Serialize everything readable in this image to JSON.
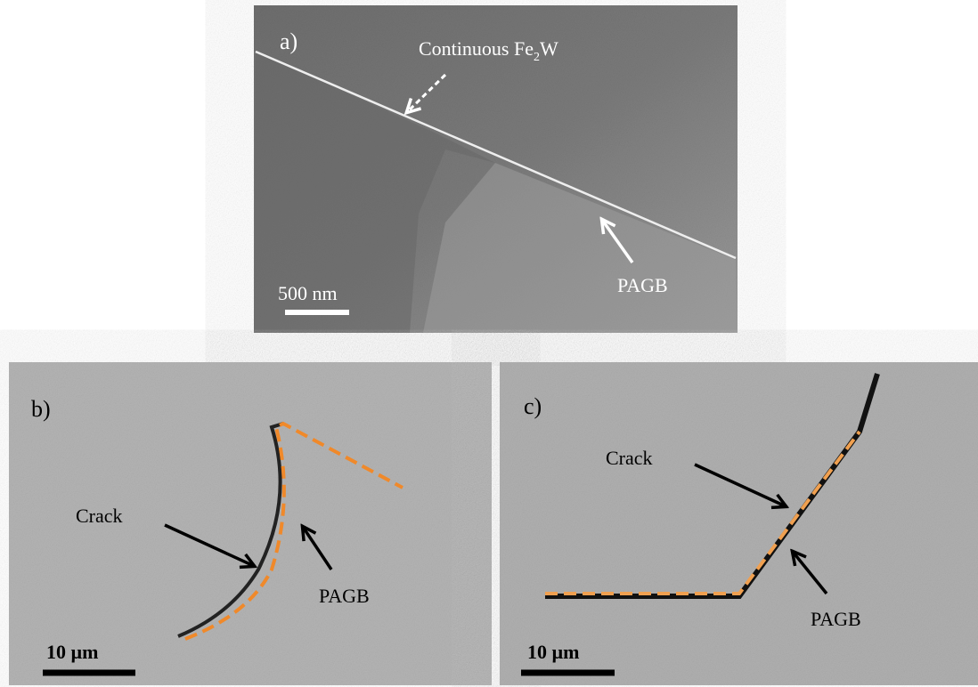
{
  "panels": [
    {
      "label": "a)",
      "annotations": [
        {
          "parts": [
            "Continuous Fe",
            "2",
            "W"
          ]
        },
        {
          "parts": [
            "PAGB"
          ]
        }
      ],
      "scale_bar": "500 nm"
    },
    {
      "label": "b)",
      "annotations": [
        {
          "parts": [
            "Crack"
          ]
        },
        {
          "parts": [
            "PAGB"
          ]
        }
      ],
      "scale_bar": "10 µm"
    },
    {
      "label": "c)",
      "annotations": [
        {
          "parts": [
            "Crack"
          ]
        },
        {
          "parts": [
            "PAGB"
          ]
        }
      ],
      "scale_bar": "10 µm"
    }
  ]
}
